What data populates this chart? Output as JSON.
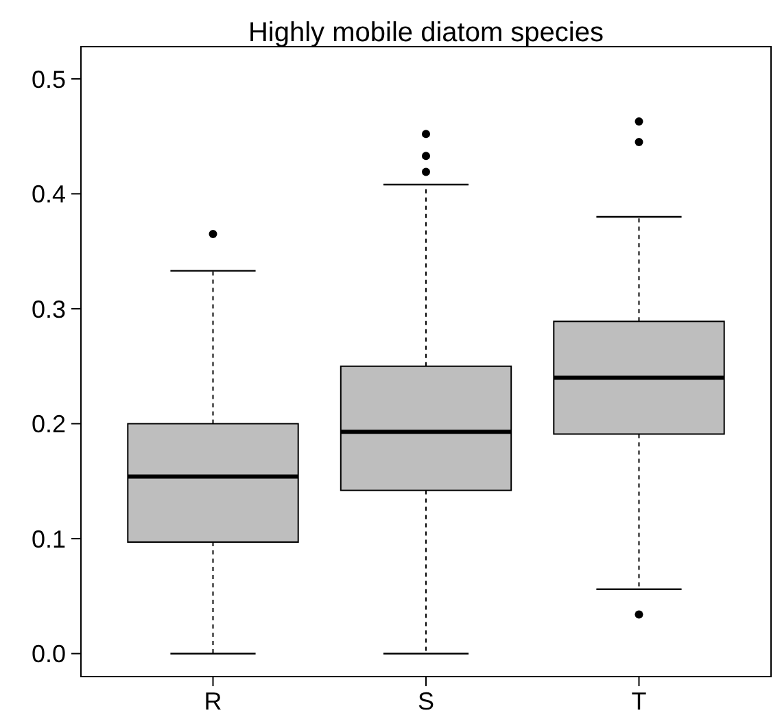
{
  "chart_data": {
    "type": "box",
    "title": "Highly mobile diatom species",
    "categories": [
      "R",
      "S",
      "T"
    ],
    "color": "#bebebe",
    "boxes": [
      {
        "low": 0,
        "q1": 0.097,
        "median": 0.154,
        "q3": 0.2,
        "high": 0.333,
        "outliers": [
          0.365
        ]
      },
      {
        "low": 0,
        "q1": 0.142,
        "median": 0.193,
        "q3": 0.25,
        "high": 0.408,
        "outliers": [
          0.419,
          0.433,
          0.452
        ]
      },
      {
        "low": 0.056,
        "q1": 0.191,
        "median": 0.24,
        "q3": 0.289,
        "high": 0.38,
        "outliers": [
          0.034,
          0.445,
          0.463
        ]
      }
    ],
    "ylim": [
      -0.02,
      0.528
    ],
    "yticks": [
      {
        "value": 0,
        "label": "0.0"
      },
      {
        "value": 0.1,
        "label": "0.1"
      },
      {
        "value": 0.2,
        "label": "0.2"
      },
      {
        "value": 0.3,
        "label": "0.3"
      },
      {
        "value": 0.4,
        "label": "0.4"
      },
      {
        "value": 0.5,
        "label": "0.5"
      }
    ],
    "grid": false
  }
}
